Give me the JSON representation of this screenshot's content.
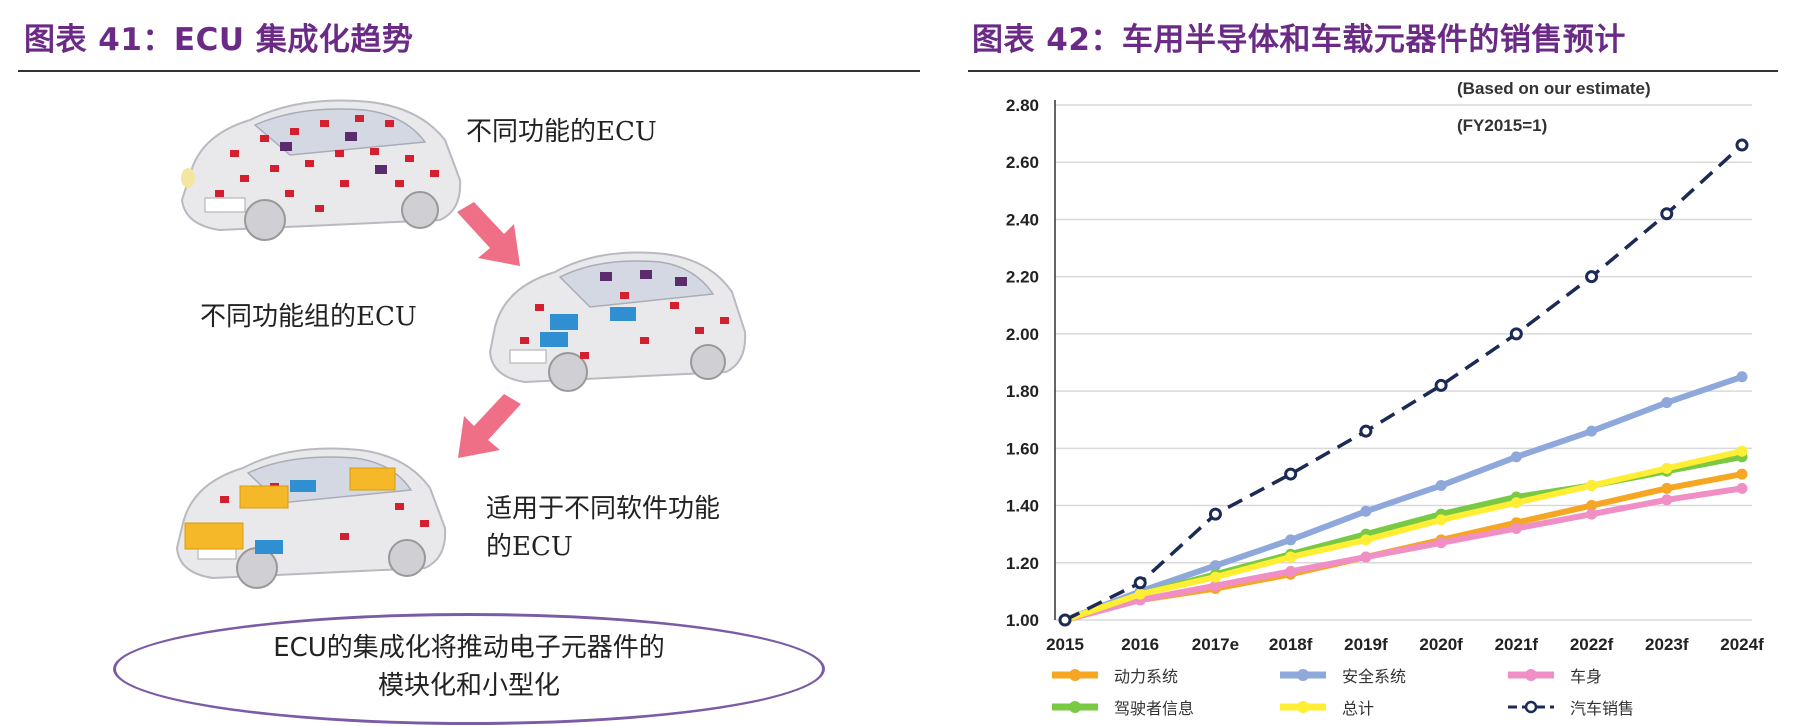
{
  "left_panel": {
    "title": "图表 41：ECU 集成化趋势",
    "captions": {
      "c1": "不同功能的ECU",
      "c2": "不同功能组的ECU",
      "c3_line1": "适用于不同软件功能",
      "c3_line2": "的ECU"
    },
    "summary_line1": "ECU的集成化将推动电子元器件的",
    "summary_line2": "模块化和小型化"
  },
  "right_panel": {
    "title": "图表 42：车用半导体和车载元器件的销售预计",
    "notes": [
      "(Based on our estimate)",
      "(FY2015=1)"
    ]
  },
  "chart_data": {
    "type": "line",
    "x": [
      "2015",
      "2016",
      "2017e",
      "2018f",
      "2019f",
      "2020f",
      "2021f",
      "2022f",
      "2023f",
      "2024f"
    ],
    "ylim": [
      1.0,
      2.8
    ],
    "yticks": [
      "1.00",
      "1.20",
      "1.40",
      "1.60",
      "1.80",
      "2.00",
      "2.20",
      "2.40",
      "2.60",
      "2.80"
    ],
    "grid": "horizontal",
    "legend_position": "bottom",
    "series": [
      {
        "name": "动力系统",
        "color": "#f5a623",
        "style": "solid",
        "values": [
          1.0,
          1.07,
          1.11,
          1.16,
          1.22,
          1.28,
          1.34,
          1.4,
          1.46,
          1.51
        ]
      },
      {
        "name": "安全系统",
        "color": "#8fa8dc",
        "style": "solid",
        "values": [
          1.0,
          1.1,
          1.19,
          1.28,
          1.38,
          1.47,
          1.57,
          1.66,
          1.76,
          1.85
        ]
      },
      {
        "name": "车身",
        "color": "#f08fc6",
        "style": "solid",
        "values": [
          1.0,
          1.07,
          1.12,
          1.17,
          1.22,
          1.27,
          1.32,
          1.37,
          1.42,
          1.46
        ]
      },
      {
        "name": "驾驶者信息",
        "color": "#7ac943",
        "style": "solid",
        "values": [
          1.0,
          1.09,
          1.16,
          1.23,
          1.3,
          1.37,
          1.43,
          1.47,
          1.52,
          1.57
        ]
      },
      {
        "name": "总计",
        "color": "#ffee33",
        "style": "solid",
        "values": [
          1.0,
          1.09,
          1.15,
          1.22,
          1.28,
          1.35,
          1.41,
          1.47,
          1.53,
          1.59
        ]
      },
      {
        "name": "汽车销售",
        "color": "#1c2b55",
        "style": "dashed-marker",
        "values": [
          1.0,
          1.13,
          1.37,
          1.51,
          1.66,
          1.82,
          2.0,
          2.2,
          2.42,
          2.66
        ]
      }
    ]
  }
}
